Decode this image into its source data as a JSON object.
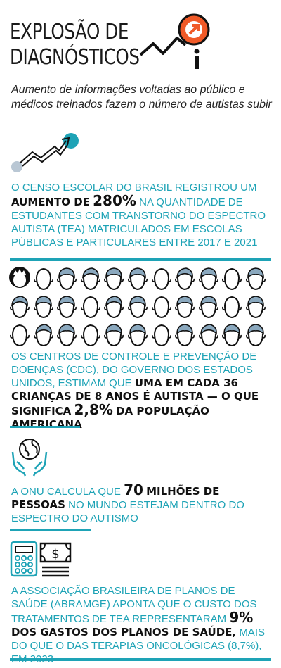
{
  "header": {
    "title_line1": "EXPLOSÃO DE",
    "title_line2": "DIAGNÓSTICOS",
    "subtitle": "Aumento de informações voltadas ao público e médicos treinados fazem o número de autistas subir"
  },
  "block1": {
    "text_a": "O censo escolar do Brasil registrou um",
    "highlight_a": "aumento de",
    "highlight_num": "280%",
    "text_b": "na quantidade de estudantes com Transtorno do Espectro Autista (TEA) matriculados em escolas públicas e particulares entre 2017 e 2021"
  },
  "block2": {
    "text_a": "Os Centros de Controle e Prevenção de Doenças (CDC), do governo dos Estados Unidos, estimam que",
    "highlight_a": "uma em cada 36 crianças de 8 anos é autista — o que significa",
    "highlight_num": "2,8%",
    "highlight_b": "da população americana"
  },
  "block3": {
    "text_a": "A ONU calcula que",
    "highlight_num": "70",
    "highlight_a": "milhões de pessoas",
    "text_b": "no mundo estejam dentro do espectro do autismo"
  },
  "block4": {
    "text_a": "A Associação Brasileira de Planos de Saúde (Abramge) aponta que o custo dos tratamentos de TEA representaram",
    "highlight_num": "9%",
    "highlight_a": "dos gastos dos planos de saúde,",
    "text_b": "mais do que o das terapias oncológicas (8,7%), em 2023"
  },
  "colors": {
    "accent": "#1ea3b6",
    "orange": "#f05a28",
    "dark": "#111111"
  },
  "icons": [
    "trend-arrow-icon",
    "info-icon",
    "children-faces-icon",
    "globe-hands-icon",
    "calculator-icon",
    "money-icon"
  ]
}
